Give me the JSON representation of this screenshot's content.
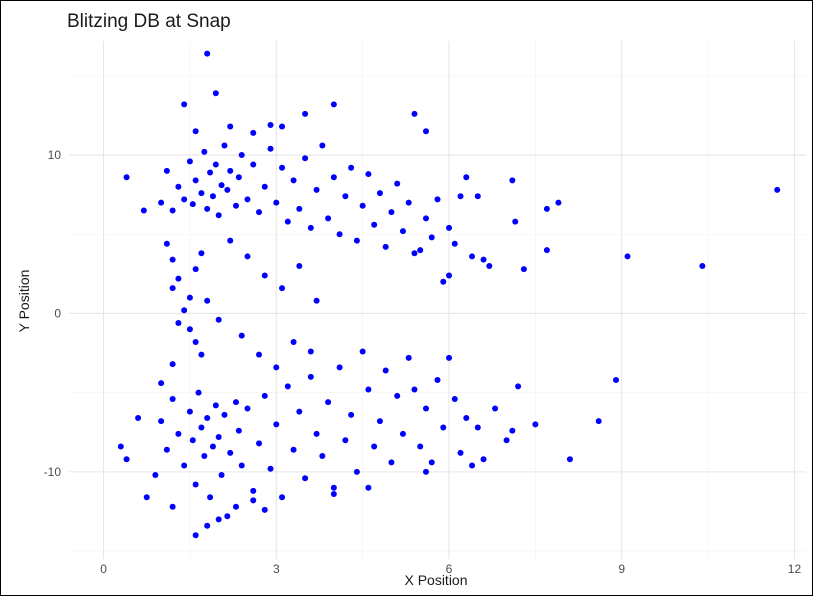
{
  "chart_data": {
    "type": "scatter",
    "title": "Blitzing DB at Snap",
    "xlabel": "X Position",
    "ylabel": "Y Position",
    "xlim": [
      -0.6,
      12.2
    ],
    "ylim": [
      -15.5,
      17.2
    ],
    "xticks": [
      0,
      3,
      6,
      9,
      12
    ],
    "xtick_labels": [
      "0",
      "3",
      "6",
      "9",
      "12"
    ],
    "yticks": [
      -10,
      0,
      10
    ],
    "ytick_labels": [
      "-10",
      "0",
      "10"
    ],
    "grid": true,
    "legend": "none",
    "point_color": "#0000ff",
    "series": [
      {
        "points": [
          [
            1.8,
            16.4
          ],
          [
            1.95,
            13.9
          ],
          [
            1.4,
            13.2
          ],
          [
            4.0,
            13.2
          ],
          [
            5.4,
            12.6
          ],
          [
            3.5,
            12.6
          ],
          [
            5.6,
            11.5
          ],
          [
            2.2,
            11.8
          ],
          [
            2.9,
            11.9
          ],
          [
            1.6,
            11.5
          ],
          [
            2.6,
            11.4
          ],
          [
            3.1,
            11.8
          ],
          [
            0.4,
            8.6
          ],
          [
            0.7,
            6.5
          ],
          [
            1.0,
            7.0
          ],
          [
            1.1,
            9.0
          ],
          [
            1.2,
            6.5
          ],
          [
            1.3,
            8.0
          ],
          [
            1.4,
            7.2
          ],
          [
            1.5,
            9.6
          ],
          [
            1.55,
            6.9
          ],
          [
            1.6,
            8.4
          ],
          [
            1.7,
            7.6
          ],
          [
            1.75,
            10.2
          ],
          [
            1.8,
            6.6
          ],
          [
            1.85,
            8.9
          ],
          [
            1.9,
            7.4
          ],
          [
            1.95,
            9.4
          ],
          [
            2.0,
            6.2
          ],
          [
            2.05,
            8.1
          ],
          [
            2.1,
            10.6
          ],
          [
            2.15,
            7.8
          ],
          [
            2.2,
            9.0
          ],
          [
            2.3,
            6.8
          ],
          [
            2.35,
            8.6
          ],
          [
            2.4,
            10.0
          ],
          [
            2.5,
            7.2
          ],
          [
            2.6,
            9.4
          ],
          [
            2.7,
            6.4
          ],
          [
            2.8,
            8.0
          ],
          [
            2.9,
            10.4
          ],
          [
            3.0,
            7.0
          ],
          [
            3.1,
            9.2
          ],
          [
            3.2,
            5.8
          ],
          [
            3.3,
            8.4
          ],
          [
            3.4,
            6.6
          ],
          [
            3.5,
            9.8
          ],
          [
            3.6,
            5.4
          ],
          [
            3.7,
            7.8
          ],
          [
            3.8,
            10.6
          ],
          [
            3.9,
            6.0
          ],
          [
            4.0,
            8.6
          ],
          [
            4.1,
            5.0
          ],
          [
            4.2,
            7.4
          ],
          [
            4.3,
            9.2
          ],
          [
            4.4,
            4.6
          ],
          [
            4.5,
            6.8
          ],
          [
            4.6,
            8.8
          ],
          [
            4.7,
            5.6
          ],
          [
            4.8,
            7.6
          ],
          [
            4.9,
            4.2
          ],
          [
            5.0,
            6.4
          ],
          [
            5.1,
            8.2
          ],
          [
            5.2,
            5.2
          ],
          [
            5.3,
            7.0
          ],
          [
            5.4,
            3.8
          ],
          [
            5.6,
            6.0
          ],
          [
            5.7,
            4.8
          ],
          [
            5.8,
            7.2
          ],
          [
            5.9,
            2.0
          ],
          [
            6.0,
            5.4
          ],
          [
            6.1,
            4.4
          ],
          [
            6.2,
            7.4
          ],
          [
            6.3,
            8.6
          ],
          [
            6.5,
            7.4
          ],
          [
            6.6,
            3.4
          ],
          [
            6.7,
            3.0
          ],
          [
            7.1,
            8.4
          ],
          [
            7.15,
            5.8
          ],
          [
            7.3,
            2.8
          ],
          [
            7.7,
            6.6
          ],
          [
            7.9,
            7.0
          ],
          [
            7.7,
            4.0
          ],
          [
            9.1,
            3.6
          ],
          [
            10.4,
            3.0
          ],
          [
            11.7,
            7.8
          ],
          [
            6.0,
            2.4
          ],
          [
            6.4,
            3.6
          ],
          [
            5.5,
            4.0
          ],
          [
            1.1,
            4.4
          ],
          [
            1.2,
            3.4
          ],
          [
            1.3,
            2.2
          ],
          [
            1.5,
            1.0
          ],
          [
            1.6,
            2.8
          ],
          [
            1.7,
            3.8
          ],
          [
            1.8,
            0.8
          ],
          [
            1.2,
            1.6
          ],
          [
            1.4,
            0.2
          ],
          [
            1.5,
            -1.0
          ],
          [
            1.6,
            -1.8
          ],
          [
            1.3,
            -0.6
          ],
          [
            1.7,
            -2.6
          ],
          [
            1.2,
            -3.2
          ],
          [
            2.2,
            4.6
          ],
          [
            2.5,
            3.6
          ],
          [
            2.8,
            2.4
          ],
          [
            3.1,
            1.6
          ],
          [
            3.4,
            3.0
          ],
          [
            3.7,
            0.8
          ],
          [
            2.0,
            -0.4
          ],
          [
            2.4,
            -1.4
          ],
          [
            2.7,
            -2.6
          ],
          [
            3.0,
            -3.4
          ],
          [
            3.3,
            -1.8
          ],
          [
            3.6,
            -2.4
          ],
          [
            1.0,
            -6.8
          ],
          [
            1.1,
            -8.6
          ],
          [
            1.2,
            -5.4
          ],
          [
            1.3,
            -7.6
          ],
          [
            1.4,
            -9.6
          ],
          [
            1.5,
            -6.2
          ],
          [
            1.55,
            -8.0
          ],
          [
            1.6,
            -10.8
          ],
          [
            1.65,
            -5.0
          ],
          [
            1.7,
            -7.2
          ],
          [
            1.75,
            -9.0
          ],
          [
            1.8,
            -6.6
          ],
          [
            1.85,
            -11.6
          ],
          [
            1.9,
            -8.4
          ],
          [
            1.95,
            -5.8
          ],
          [
            2.0,
            -7.8
          ],
          [
            2.05,
            -10.2
          ],
          [
            2.1,
            -6.4
          ],
          [
            2.15,
            -12.8
          ],
          [
            2.2,
            -8.8
          ],
          [
            2.3,
            -5.6
          ],
          [
            2.35,
            -7.4
          ],
          [
            2.4,
            -9.6
          ],
          [
            2.5,
            -6.0
          ],
          [
            2.6,
            -11.2
          ],
          [
            2.7,
            -8.2
          ],
          [
            2.8,
            -5.2
          ],
          [
            2.9,
            -9.8
          ],
          [
            3.0,
            -7.0
          ],
          [
            3.1,
            -11.6
          ],
          [
            3.2,
            -4.6
          ],
          [
            3.3,
            -8.6
          ],
          [
            3.4,
            -6.2
          ],
          [
            3.5,
            -10.4
          ],
          [
            3.6,
            -4.0
          ],
          [
            3.7,
            -7.6
          ],
          [
            3.8,
            -9.0
          ],
          [
            3.9,
            -5.6
          ],
          [
            4.0,
            -11.0
          ],
          [
            4.1,
            -3.4
          ],
          [
            4.2,
            -8.0
          ],
          [
            4.3,
            -6.4
          ],
          [
            4.4,
            -10.0
          ],
          [
            4.5,
            -2.4
          ],
          [
            4.6,
            -4.8
          ],
          [
            4.7,
            -8.4
          ],
          [
            4.8,
            -6.8
          ],
          [
            4.9,
            -3.6
          ],
          [
            5.0,
            -9.4
          ],
          [
            5.1,
            -5.2
          ],
          [
            5.2,
            -7.6
          ],
          [
            5.3,
            -2.8
          ],
          [
            5.4,
            -4.8
          ],
          [
            5.5,
            -8.4
          ],
          [
            5.6,
            -6.0
          ],
          [
            5.7,
            -9.4
          ],
          [
            5.8,
            -4.2
          ],
          [
            5.9,
            -7.2
          ],
          [
            6.0,
            -2.8
          ],
          [
            6.1,
            -5.4
          ],
          [
            6.2,
            -8.8
          ],
          [
            6.3,
            -6.6
          ],
          [
            6.5,
            -7.2
          ],
          [
            6.6,
            -9.2
          ],
          [
            6.8,
            -6.0
          ],
          [
            7.0,
            -8.0
          ],
          [
            7.2,
            -4.6
          ],
          [
            7.5,
            -7.0
          ],
          [
            8.1,
            -9.2
          ],
          [
            8.6,
            -6.8
          ],
          [
            8.9,
            -4.2
          ],
          [
            6.4,
            -9.6
          ],
          [
            7.1,
            -7.4
          ],
          [
            0.3,
            -8.4
          ],
          [
            0.4,
            -9.2
          ],
          [
            0.6,
            -6.6
          ],
          [
            0.75,
            -11.6
          ],
          [
            0.9,
            -10.2
          ],
          [
            1.0,
            -4.4
          ],
          [
            1.2,
            -12.2
          ],
          [
            1.6,
            -14.0
          ],
          [
            1.8,
            -13.4
          ],
          [
            2.0,
            -13.0
          ],
          [
            2.3,
            -12.2
          ],
          [
            2.6,
            -11.8
          ],
          [
            2.8,
            -12.4
          ],
          [
            4.0,
            -11.4
          ],
          [
            4.6,
            -11.0
          ],
          [
            5.6,
            -10.0
          ]
        ]
      }
    ]
  }
}
